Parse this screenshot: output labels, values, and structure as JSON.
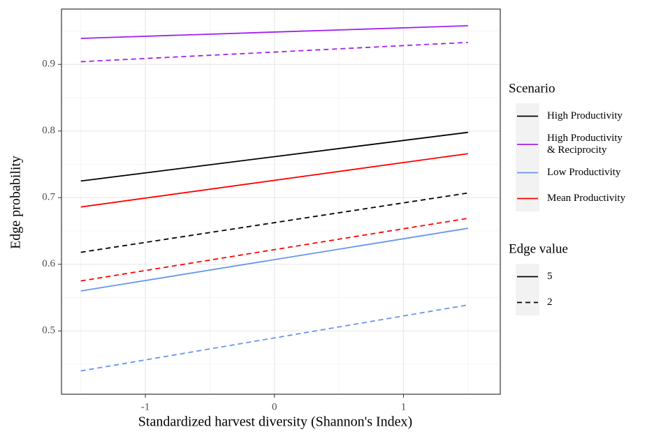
{
  "chart_data": {
    "type": "line",
    "x_label": "Standardized harvest diversity (Shannon's Index)",
    "y_label": "Edge probability",
    "x": [
      -1.5,
      1.5
    ],
    "xlim": [
      -1.65,
      1.75
    ],
    "xticks": [
      -1,
      0,
      1
    ],
    "xminor_ticks": [
      -1.5,
      -0.5,
      0.5,
      1.5
    ],
    "ylim": [
      0.405,
      0.983
    ],
    "yticks": [
      0.5,
      0.6,
      0.7,
      0.8,
      0.9
    ],
    "yminor_ticks": [
      0.45,
      0.55,
      0.65,
      0.75,
      0.85,
      0.95
    ],
    "grid": true,
    "legends": [
      {
        "title": "Scenario",
        "entries": [
          {
            "label": [
              "High Productivity"
            ],
            "color": "#000000"
          },
          {
            "label": [
              "High Productivity",
              "& Reciprocity"
            ],
            "color": "#a020f0"
          },
          {
            "label": [
              "Low Productivity"
            ],
            "color": "#6495ed"
          },
          {
            "label": [
              "Mean Productivity"
            ],
            "color": "#ff0000"
          }
        ]
      },
      {
        "title": "Edge value",
        "entries": [
          {
            "label": 5,
            "dash": "solid"
          },
          {
            "label": 2,
            "dash": "dashed"
          }
        ]
      }
    ],
    "series": [
      {
        "scenario": "High Productivity",
        "edge_value": 5,
        "color": "#000000",
        "dash": "solid",
        "values": [
          0.725,
          0.798
        ]
      },
      {
        "scenario": "High Productivity & Reciprocity",
        "edge_value": 5,
        "color": "#a020f0",
        "dash": "solid",
        "values": [
          0.939,
          0.958
        ]
      },
      {
        "scenario": "Low Productivity",
        "edge_value": 5,
        "color": "#6495ed",
        "dash": "solid",
        "values": [
          0.56,
          0.654
        ]
      },
      {
        "scenario": "Mean Productivity",
        "edge_value": 5,
        "color": "#ff0000",
        "dash": "solid",
        "values": [
          0.686,
          0.766
        ]
      },
      {
        "scenario": "High Productivity",
        "edge_value": 2,
        "color": "#000000",
        "dash": "dashed",
        "values": [
          0.618,
          0.707
        ]
      },
      {
        "scenario": "High Productivity & Reciprocity",
        "edge_value": 2,
        "color": "#a020f0",
        "dash": "dashed",
        "values": [
          0.904,
          0.933
        ]
      },
      {
        "scenario": "Low Productivity",
        "edge_value": 2,
        "color": "#6495ed",
        "dash": "dashed",
        "values": [
          0.44,
          0.539
        ]
      },
      {
        "scenario": "Mean Productivity",
        "edge_value": 2,
        "color": "#ff0000",
        "dash": "dashed",
        "values": [
          0.575,
          0.669
        ]
      }
    ]
  }
}
